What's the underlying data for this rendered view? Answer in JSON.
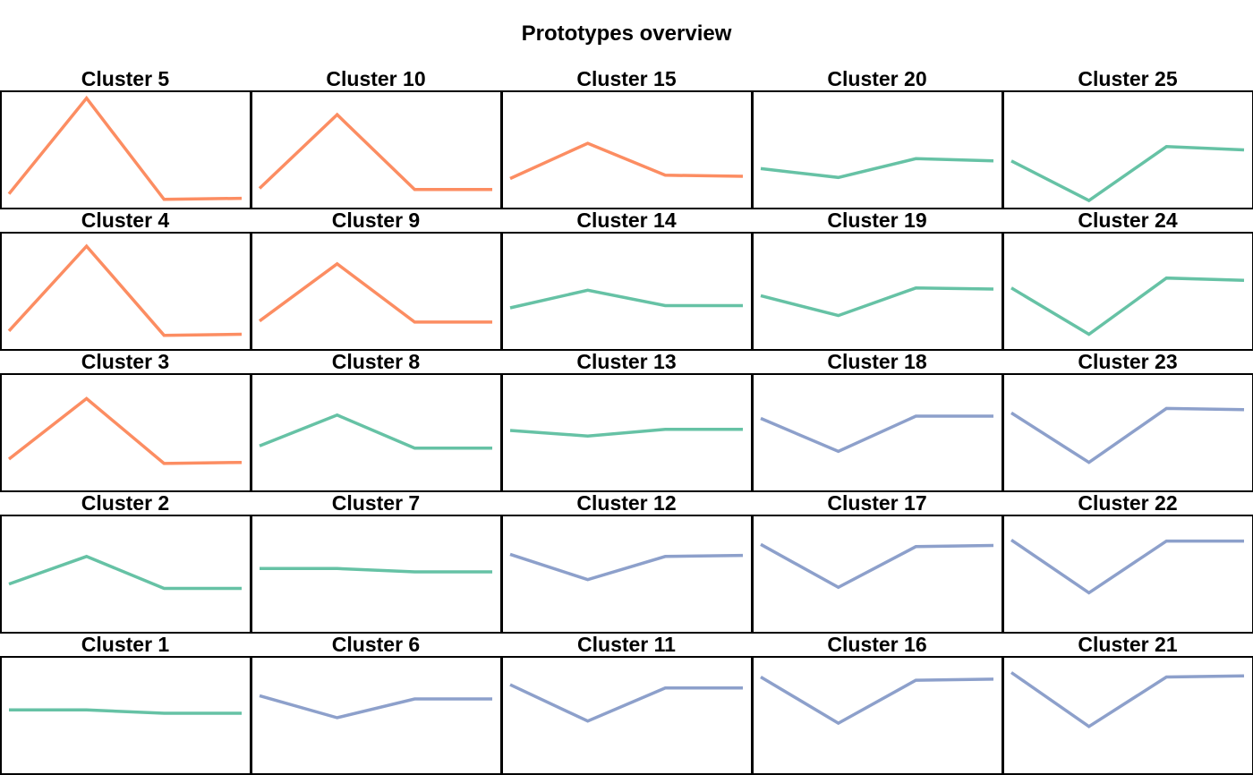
{
  "title": "Prototypes overview",
  "colors": {
    "orange": "#fc8d62",
    "green": "#66c2a5",
    "blue": "#8da0cb"
  },
  "chart_data": {
    "type": "line",
    "layout": "small-multiples grid, 5 columns x 5 rows, no axes, no ticks, no grid",
    "x": [
      1,
      2,
      3,
      4
    ],
    "ylim": [
      0,
      1
    ],
    "panels": [
      {
        "title": "Cluster 5",
        "color": "orange",
        "values": [
          0.1,
          0.97,
          0.05,
          0.06
        ]
      },
      {
        "title": "Cluster 10",
        "color": "orange",
        "values": [
          0.15,
          0.82,
          0.14,
          0.14
        ]
      },
      {
        "title": "Cluster 15",
        "color": "orange",
        "values": [
          0.24,
          0.56,
          0.27,
          0.26
        ]
      },
      {
        "title": "Cluster 20",
        "color": "green",
        "values": [
          0.33,
          0.25,
          0.42,
          0.4
        ]
      },
      {
        "title": "Cluster 25",
        "color": "green",
        "values": [
          0.4,
          0.04,
          0.53,
          0.5
        ]
      },
      {
        "title": "Cluster 4",
        "color": "orange",
        "values": [
          0.14,
          0.91,
          0.1,
          0.11
        ]
      },
      {
        "title": "Cluster 9",
        "color": "orange",
        "values": [
          0.23,
          0.75,
          0.22,
          0.22
        ]
      },
      {
        "title": "Cluster 14",
        "color": "green",
        "values": [
          0.35,
          0.51,
          0.37,
          0.37
        ]
      },
      {
        "title": "Cluster 19",
        "color": "green",
        "values": [
          0.46,
          0.28,
          0.53,
          0.52
        ]
      },
      {
        "title": "Cluster 24",
        "color": "green",
        "values": [
          0.53,
          0.11,
          0.62,
          0.6
        ]
      },
      {
        "title": "Cluster 3",
        "color": "orange",
        "values": [
          0.26,
          0.81,
          0.22,
          0.23
        ]
      },
      {
        "title": "Cluster 8",
        "color": "green",
        "values": [
          0.38,
          0.66,
          0.36,
          0.36
        ]
      },
      {
        "title": "Cluster 13",
        "color": "green",
        "values": [
          0.52,
          0.47,
          0.53,
          0.53
        ]
      },
      {
        "title": "Cluster 18",
        "color": "blue",
        "values": [
          0.63,
          0.33,
          0.65,
          0.65
        ]
      },
      {
        "title": "Cluster 23",
        "color": "blue",
        "values": [
          0.68,
          0.23,
          0.72,
          0.71
        ]
      },
      {
        "title": "Cluster 2",
        "color": "green",
        "values": [
          0.41,
          0.66,
          0.37,
          0.37
        ]
      },
      {
        "title": "Cluster 7",
        "color": "green",
        "values": [
          0.55,
          0.55,
          0.52,
          0.52
        ]
      },
      {
        "title": "Cluster 12",
        "color": "blue",
        "values": [
          0.68,
          0.45,
          0.66,
          0.67
        ]
      },
      {
        "title": "Cluster 17",
        "color": "blue",
        "values": [
          0.77,
          0.38,
          0.75,
          0.76
        ]
      },
      {
        "title": "Cluster 22",
        "color": "blue",
        "values": [
          0.81,
          0.33,
          0.8,
          0.8
        ]
      },
      {
        "title": "Cluster 1",
        "color": "green",
        "values": [
          0.55,
          0.55,
          0.52,
          0.52
        ]
      },
      {
        "title": "Cluster 6",
        "color": "blue",
        "values": [
          0.68,
          0.48,
          0.65,
          0.65
        ]
      },
      {
        "title": "Cluster 11",
        "color": "blue",
        "values": [
          0.78,
          0.45,
          0.75,
          0.75
        ]
      },
      {
        "title": "Cluster 16",
        "color": "blue",
        "values": [
          0.85,
          0.43,
          0.82,
          0.83
        ]
      },
      {
        "title": "Cluster 21",
        "color": "blue",
        "values": [
          0.89,
          0.4,
          0.85,
          0.86
        ]
      }
    ]
  }
}
